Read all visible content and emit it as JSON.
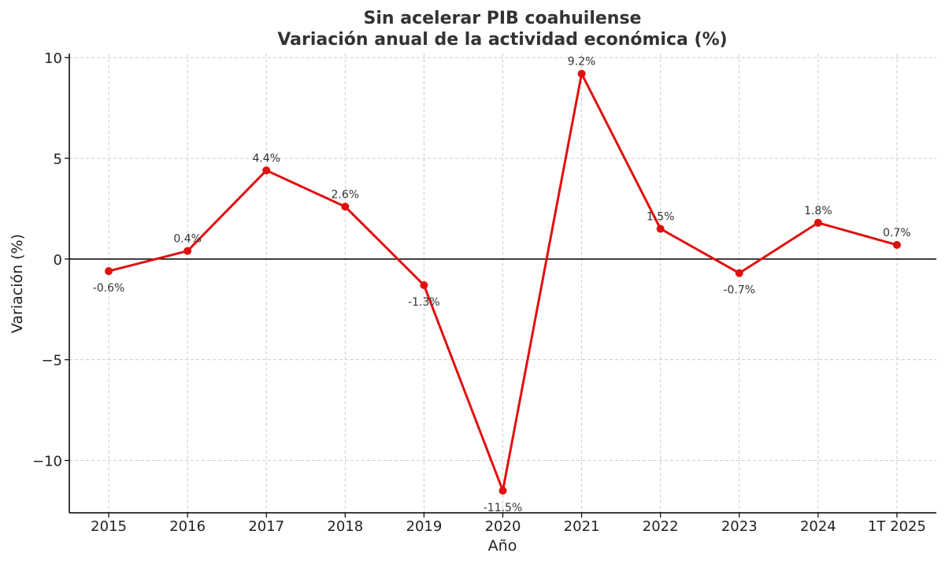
{
  "chart_data": {
    "type": "line",
    "title": "Sin acelerar PIB coahuilense",
    "subtitle": "Variación anual de la actividad económica (%)",
    "xlabel": "Año",
    "ylabel": "Variación (%)",
    "categories": [
      "2015",
      "2016",
      "2017",
      "2018",
      "2019",
      "2020",
      "2021",
      "2022",
      "2023",
      "2024",
      "1T 2025"
    ],
    "values": [
      -0.6,
      0.4,
      4.4,
      2.6,
      -1.3,
      -11.5,
      9.2,
      1.5,
      -0.7,
      1.8,
      0.7
    ],
    "data_labels": [
      "-0.6%",
      "0.4%",
      "4.4%",
      "2.6%",
      "-1.3%",
      "-11.5%",
      "9.2%",
      "1.5%",
      "-0.7%",
      "1.8%",
      "0.7%"
    ],
    "yticks": [
      10,
      5,
      0,
      -5,
      -10
    ],
    "ytick_labels": [
      "10",
      "5",
      "0",
      "−5",
      "−10"
    ],
    "ylim": [
      -12.6,
      10.2
    ],
    "grid": true,
    "zero_line": true,
    "colors": {
      "series": "#e01010",
      "zero_line": "#000000",
      "grid": "#cccccc"
    }
  }
}
